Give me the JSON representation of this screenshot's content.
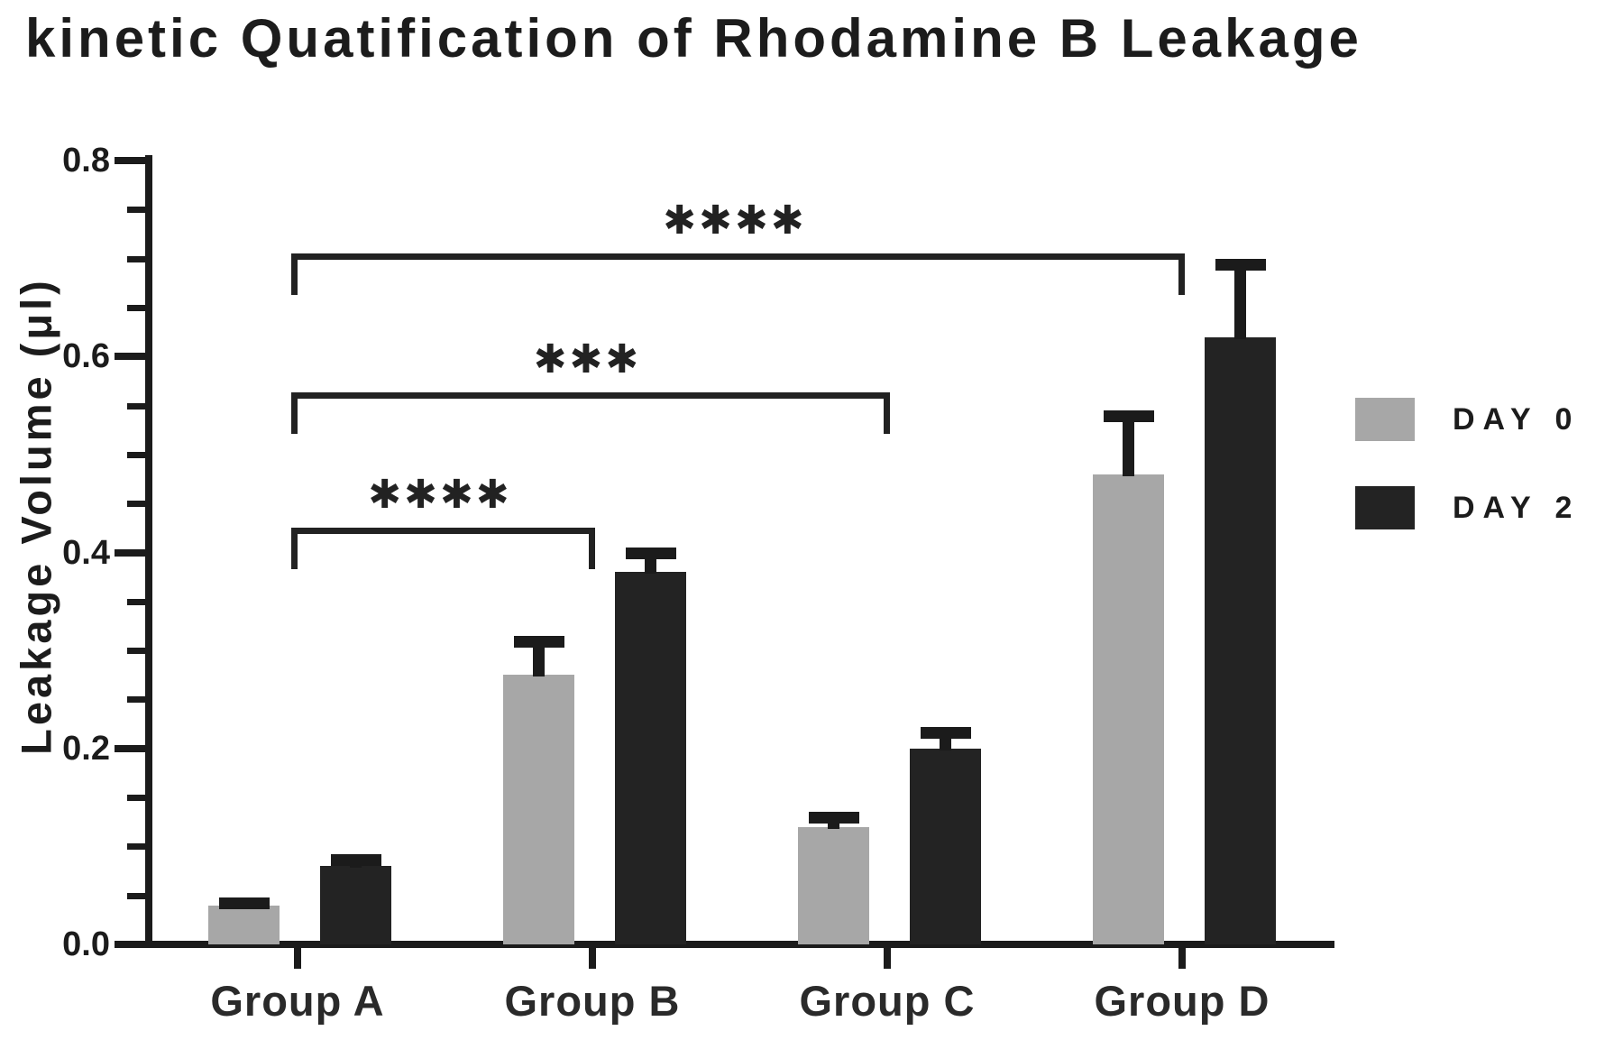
{
  "chart_data": {
    "type": "bar",
    "title": "kinetic Quatification of Rhodamine B Leakage",
    "ylabel": "Leakage Volume (μl)",
    "xlabel": "",
    "categories": [
      "Group A",
      "Group B",
      "Group C",
      "Group D"
    ],
    "series": [
      {
        "name": "DAY 0",
        "color": "#a7a7a7",
        "values": [
          0.04,
          0.275,
          0.12,
          0.48
        ],
        "errors_plus": [
          0.008,
          0.04,
          0.015,
          0.065
        ]
      },
      {
        "name": "DAY 2",
        "color": "#232323",
        "values": [
          0.08,
          0.38,
          0.2,
          0.62
        ],
        "errors_plus": [
          0.012,
          0.025,
          0.022,
          0.08
        ]
      }
    ],
    "ylim": [
      0,
      0.8
    ],
    "yticks": [
      0.0,
      0.2,
      0.4,
      0.6,
      0.8
    ],
    "ytick_labels": [
      "0.0",
      "0.2",
      "0.4",
      "0.6",
      "0.8"
    ],
    "minor_tick_step": 0.05,
    "grid": false,
    "error_bars": "upper only, black caps",
    "legend_position": "right",
    "significance_brackets": [
      {
        "from": "Group A",
        "to": "Group B",
        "label": "****",
        "y": 0.425
      },
      {
        "from": "Group A",
        "to": "Group C",
        "label": "***",
        "y": 0.563
      },
      {
        "from": "Group A",
        "to": "Group D",
        "label": "****",
        "y": 0.705
      }
    ]
  }
}
